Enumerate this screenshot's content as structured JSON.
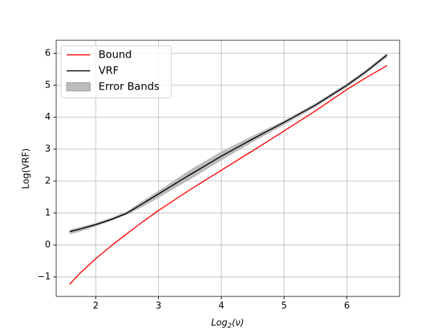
{
  "chart_data": {
    "type": "line",
    "xlabel": [
      "Log",
      "2",
      "(ν)"
    ],
    "ylabel": "Log(VRF)",
    "x": [
      1.585,
      1.75,
      2,
      2.25,
      2.5,
      2.75,
      3,
      3.5,
      4,
      4.5,
      5,
      5.5,
      6,
      6.3,
      6.64
    ],
    "series": [
      {
        "name": "Bound",
        "color": "#ff0000",
        "values": [
          -1.23,
          -0.88,
          -0.43,
          -0.02,
          0.36,
          0.73,
          1.08,
          1.73,
          2.34,
          2.95,
          3.57,
          4.2,
          4.87,
          5.23,
          5.62
        ]
      },
      {
        "name": "VRF",
        "color": "#000000",
        "values": [
          0.42,
          0.5,
          0.64,
          0.8,
          1.0,
          1.3,
          1.6,
          2.2,
          2.78,
          3.32,
          3.84,
          4.38,
          5.0,
          5.42,
          5.95
        ]
      }
    ],
    "band": {
      "name": "Error Bands",
      "color": "#bbbbbb",
      "lower": [
        0.33,
        0.42,
        0.58,
        0.76,
        0.95,
        1.2,
        1.48,
        2.05,
        2.65,
        3.22,
        3.76,
        4.32,
        4.94,
        5.36,
        5.88
      ],
      "upper": [
        0.48,
        0.56,
        0.69,
        0.86,
        1.06,
        1.38,
        1.7,
        2.35,
        2.93,
        3.42,
        3.9,
        4.44,
        5.06,
        5.48,
        6.02
      ]
    },
    "xlim": [
      1.37,
      6.84
    ],
    "ylim": [
      -1.61,
      6.41
    ],
    "xticks": [
      2,
      3,
      4,
      5,
      6
    ],
    "yticks": [
      {
        "value": -1,
        "label": "−1"
      },
      0,
      1,
      2,
      3,
      4,
      5,
      6
    ],
    "grid": true,
    "legend": "upper left"
  }
}
